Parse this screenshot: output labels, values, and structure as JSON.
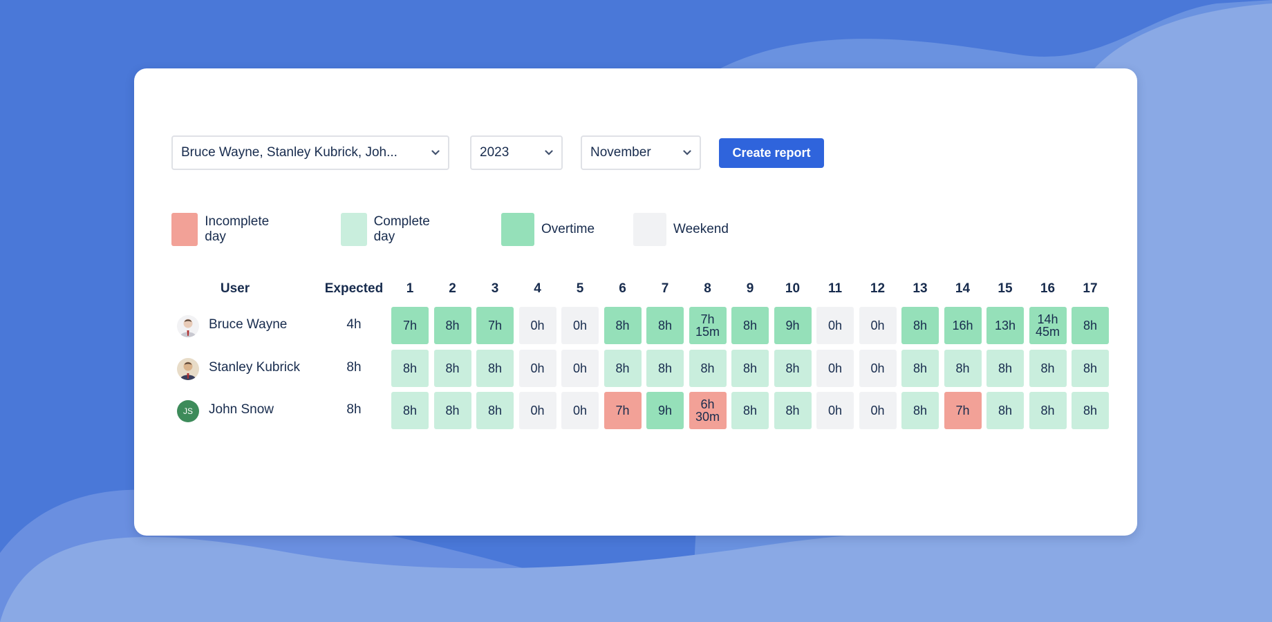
{
  "filters": {
    "users_value": "Bruce Wayne, Stanley Kubrick, Joh...",
    "year_value": "2023",
    "month_value": "November",
    "create_report_label": "Create report"
  },
  "legend": [
    {
      "label": "Incomplete day",
      "color": "#f2a197"
    },
    {
      "label": "Complete day",
      "color": "#c9eedd"
    },
    {
      "label": "Overtime",
      "color": "#95e0b9"
    },
    {
      "label": "Weekend",
      "color": "#f1f2f4"
    }
  ],
  "table": {
    "user_header": "User",
    "expected_header": "Expected",
    "days": [
      "1",
      "2",
      "3",
      "4",
      "5",
      "6",
      "7",
      "8",
      "9",
      "10",
      "11",
      "12",
      "13",
      "14",
      "15",
      "16",
      "17"
    ],
    "rows": [
      {
        "name": "Bruce Wayne",
        "expected": "4h",
        "avatar": "photo-avatar",
        "cells": [
          {
            "value": "7h",
            "status": "overtime"
          },
          {
            "value": "8h",
            "status": "overtime"
          },
          {
            "value": "7h",
            "status": "overtime"
          },
          {
            "value": "0h",
            "status": "weekend"
          },
          {
            "value": "0h",
            "status": "weekend"
          },
          {
            "value": "8h",
            "status": "overtime"
          },
          {
            "value": "8h",
            "status": "overtime"
          },
          {
            "value": "7h 15m",
            "status": "overtime"
          },
          {
            "value": "8h",
            "status": "overtime"
          },
          {
            "value": "9h",
            "status": "overtime"
          },
          {
            "value": "0h",
            "status": "weekend"
          },
          {
            "value": "0h",
            "status": "weekend"
          },
          {
            "value": "8h",
            "status": "overtime"
          },
          {
            "value": "16h",
            "status": "overtime"
          },
          {
            "value": "13h",
            "status": "overtime"
          },
          {
            "value": "14h 45m",
            "status": "overtime"
          },
          {
            "value": "8h",
            "status": "overtime"
          }
        ]
      },
      {
        "name": "Stanley Kubrick",
        "expected": "8h",
        "avatar": "photo-avatar",
        "cells": [
          {
            "value": "8h",
            "status": "complete"
          },
          {
            "value": "8h",
            "status": "complete"
          },
          {
            "value": "8h",
            "status": "complete"
          },
          {
            "value": "0h",
            "status": "weekend"
          },
          {
            "value": "0h",
            "status": "weekend"
          },
          {
            "value": "8h",
            "status": "complete"
          },
          {
            "value": "8h",
            "status": "complete"
          },
          {
            "value": "8h",
            "status": "complete"
          },
          {
            "value": "8h",
            "status": "complete"
          },
          {
            "value": "8h",
            "status": "complete"
          },
          {
            "value": "0h",
            "status": "weekend"
          },
          {
            "value": "0h",
            "status": "weekend"
          },
          {
            "value": "8h",
            "status": "complete"
          },
          {
            "value": "8h",
            "status": "complete"
          },
          {
            "value": "8h",
            "status": "complete"
          },
          {
            "value": "8h",
            "status": "complete"
          },
          {
            "value": "8h",
            "status": "complete"
          }
        ]
      },
      {
        "name": "John Snow",
        "expected": "8h",
        "avatar": "initials-avatar",
        "initials": "JS",
        "avatar_color": "#3d8b5a",
        "cells": [
          {
            "value": "8h",
            "status": "complete"
          },
          {
            "value": "8h",
            "status": "complete"
          },
          {
            "value": "8h",
            "status": "complete"
          },
          {
            "value": "0h",
            "status": "weekend"
          },
          {
            "value": "0h",
            "status": "weekend"
          },
          {
            "value": "7h",
            "status": "incomplete"
          },
          {
            "value": "9h",
            "status": "overtime"
          },
          {
            "value": "6h 30m",
            "status": "incomplete"
          },
          {
            "value": "8h",
            "status": "complete"
          },
          {
            "value": "8h",
            "status": "complete"
          },
          {
            "value": "0h",
            "status": "weekend"
          },
          {
            "value": "0h",
            "status": "weekend"
          },
          {
            "value": "8h",
            "status": "complete"
          },
          {
            "value": "7h",
            "status": "incomplete"
          },
          {
            "value": "8h",
            "status": "complete"
          },
          {
            "value": "8h",
            "status": "complete"
          },
          {
            "value": "8h",
            "status": "complete"
          }
        ]
      }
    ]
  }
}
